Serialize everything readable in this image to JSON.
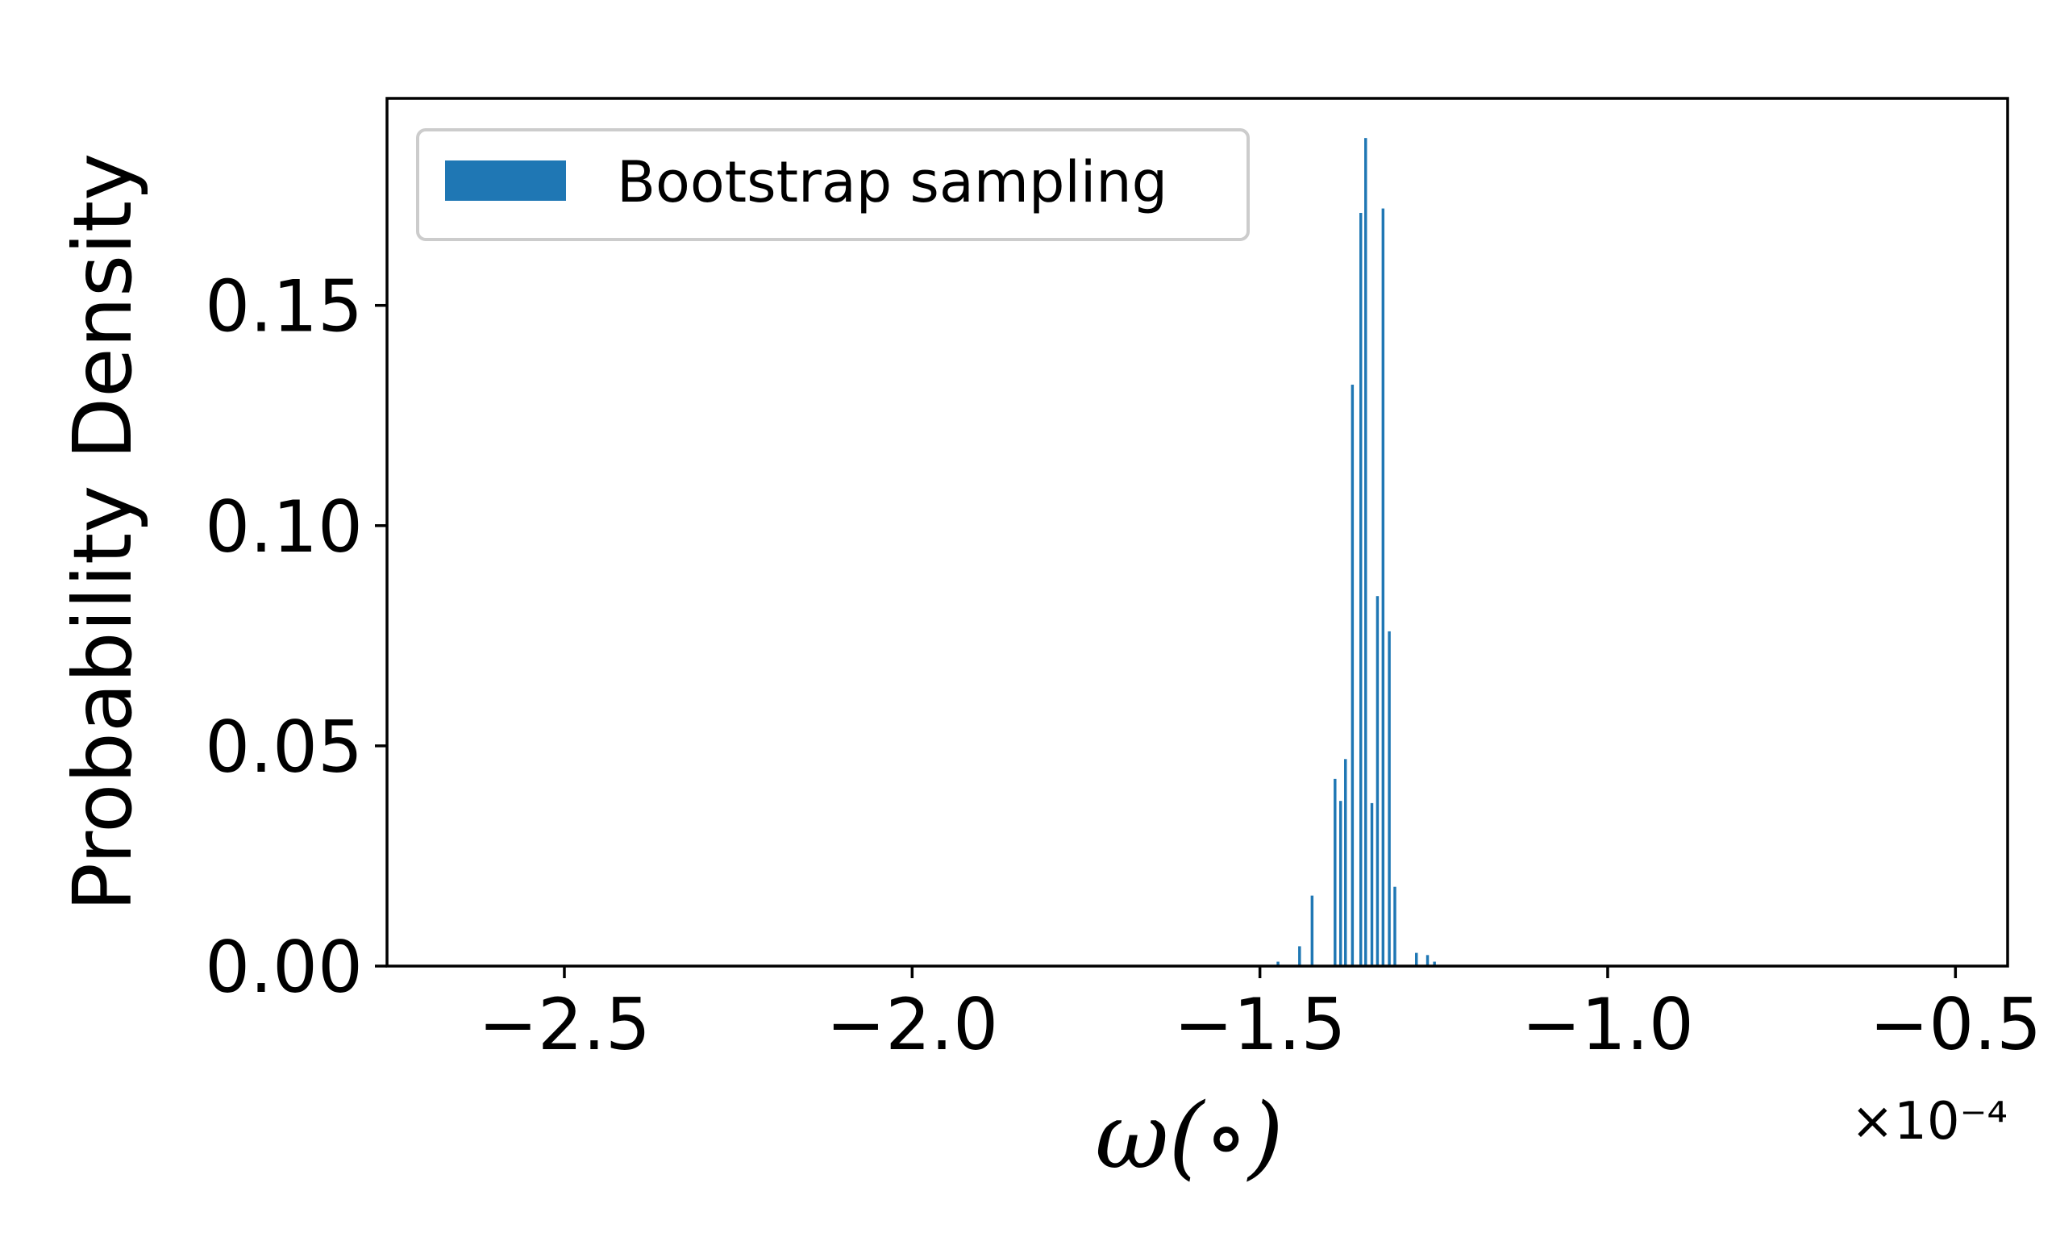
{
  "chart_data": {
    "type": "bar",
    "xlabel": "ω(∘)",
    "ylabel": "Probability Density",
    "x_offset_text": "×10⁻⁴",
    "x_scale_exponent": -4,
    "xlim": [
      -2.755,
      -0.425
    ],
    "ylim": [
      0,
      0.197
    ],
    "x_ticks": [
      -2.5,
      -2.0,
      -1.5,
      -1.0,
      -0.5
    ],
    "x_tick_labels": [
      "−2.5",
      "−2.0",
      "−1.5",
      "−1.0",
      "−0.5"
    ],
    "y_ticks": [
      0.0,
      0.05,
      0.1,
      0.15
    ],
    "y_tick_labels": [
      "0.00",
      "0.05",
      "0.10",
      "0.15"
    ],
    "grid": false,
    "legend_position": "top-left",
    "series": [
      {
        "name": "Bootstrap sampling",
        "color": "#1f77b4",
        "bar_width": 0.004,
        "x": [
          -1.474,
          -1.443,
          -1.425,
          -1.392,
          -1.384,
          -1.377,
          -1.367,
          -1.355,
          -1.348,
          -1.339,
          -1.331,
          -1.323,
          -1.314,
          -1.306,
          -1.275,
          -1.259,
          -1.249
        ],
        "values": [
          0.001,
          0.0045,
          0.016,
          0.0425,
          0.0375,
          0.047,
          0.132,
          0.171,
          0.188,
          0.037,
          0.084,
          0.172,
          0.076,
          0.018,
          0.003,
          0.0025,
          0.001
        ]
      }
    ]
  }
}
